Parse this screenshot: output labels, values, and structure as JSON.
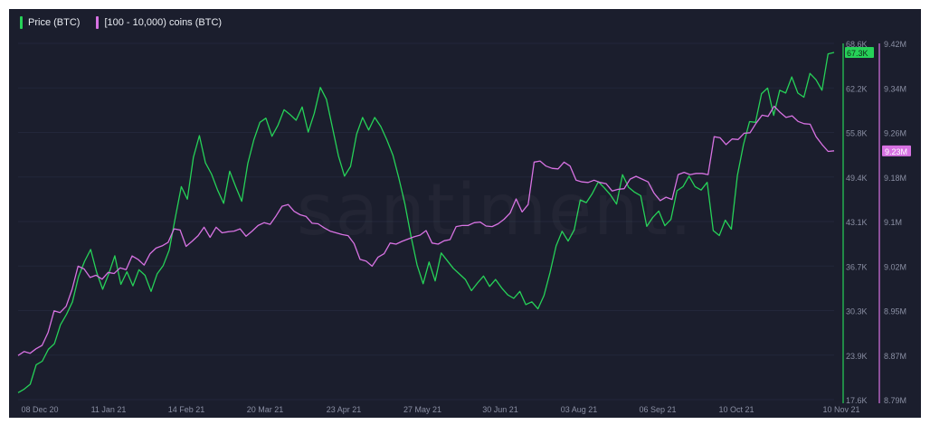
{
  "legend": {
    "price_label": "Price (BTC)",
    "holders_label": "[100 - 10,000) coins (BTC)"
  },
  "watermark": "santiment.",
  "caption": "",
  "colors": {
    "background": "#1b1e2d",
    "price": "#26d158",
    "holders": "#d772e2",
    "price_badge_text": "#0f2a18",
    "axis_text": "#8a8fa3"
  },
  "chart_data": {
    "type": "line",
    "title": "",
    "x_ticks": [
      "08 Dec 20",
      "11 Jan 21",
      "14 Feb 21",
      "20 Mar 21",
      "23 Apr 21",
      "27 May 21",
      "30 Jun 21",
      "03 Aug 21",
      "06 Sep 21",
      "10 Oct 21",
      "10 Nov 21"
    ],
    "y_left_ticks": [
      "68.6K",
      "62.2K",
      "55.8K",
      "49.4K",
      "43.1K",
      "36.7K",
      "30.3K",
      "23.9K",
      "17.6K"
    ],
    "y_left_range": [
      17.6,
      68.6
    ],
    "y_left_unit": "K",
    "y_right_ticks": [
      "9.42M",
      "9.34M",
      "9.26M",
      "9.18M",
      "9.1M",
      "9.02M",
      "8.95M",
      "8.87M",
      "8.79M"
    ],
    "y_right_range": [
      8.79,
      9.42
    ],
    "y_right_unit": "M",
    "current_price_label": "67.3K",
    "current_holders_label": "9.23M",
    "series": [
      {
        "name": "Price (BTC)",
        "axis": "left",
        "values": [
          18.6,
          19.1,
          19.8,
          22.6,
          23.1,
          24.8,
          25.6,
          28.3,
          29.8,
          31.6,
          35.2,
          37.4,
          39.1,
          35.8,
          33.4,
          35.6,
          38.2,
          34.1,
          35.9,
          33.9,
          36.2,
          35.4,
          33.1,
          35.6,
          36.8,
          39.0,
          43.6,
          48.1,
          46.3,
          52.3,
          55.4,
          51.5,
          49.9,
          47.6,
          45.7,
          50.3,
          48.1,
          46.0,
          51.4,
          54.8,
          57.3,
          57.9,
          55.3,
          56.9,
          59.1,
          58.4,
          57.6,
          59.5,
          55.9,
          58.6,
          62.3,
          60.6,
          56.6,
          52.5,
          49.6,
          51.0,
          55.6,
          58.0,
          56.2,
          58.0,
          56.7,
          54.8,
          52.6,
          49.3,
          45.6,
          41.0,
          36.9,
          34.2,
          37.3,
          34.6,
          38.6,
          37.5,
          36.4,
          35.6,
          34.8,
          33.2,
          34.3,
          35.3,
          33.8,
          34.8,
          33.6,
          32.6,
          32.1,
          33.1,
          31.2,
          31.6,
          30.6,
          32.5,
          35.8,
          39.6,
          41.7,
          40.3,
          41.9,
          46.2,
          45.8,
          47.1,
          48.8,
          47.9,
          46.9,
          45.6,
          49.8,
          48.0,
          47.3,
          46.8,
          42.4,
          43.7,
          44.6,
          42.5,
          43.4,
          47.5,
          48.1,
          49.6,
          48.1,
          47.6,
          48.7,
          41.8,
          41.1,
          43.3,
          42.0,
          49.7,
          54.1,
          57.4,
          57.3,
          61.4,
          62.2,
          58.3,
          61.9,
          61.5,
          63.8,
          61.5,
          60.9,
          64.3,
          63.4,
          61.9,
          67.1,
          67.3
        ]
      },
      {
        "name": "[100 - 10,000) coins (BTC)",
        "axis": "right",
        "values": [
          8.868,
          8.875,
          8.872,
          8.88,
          8.886,
          8.909,
          8.947,
          8.944,
          8.955,
          8.985,
          9.026,
          9.021,
          9.006,
          9.01,
          9.003,
          9.015,
          9.013,
          9.023,
          9.02,
          9.044,
          9.038,
          9.028,
          9.048,
          9.058,
          9.062,
          9.068,
          9.092,
          9.09,
          9.061,
          9.07,
          9.08,
          9.095,
          9.077,
          9.095,
          9.085,
          9.087,
          9.088,
          9.092,
          9.079,
          9.088,
          9.098,
          9.103,
          9.1,
          9.115,
          9.132,
          9.135,
          9.123,
          9.117,
          9.114,
          9.102,
          9.101,
          9.094,
          9.088,
          9.085,
          9.082,
          9.08,
          9.066,
          9.038,
          9.035,
          9.026,
          9.042,
          9.048,
          9.067,
          9.065,
          9.07,
          9.074,
          9.078,
          9.081,
          9.089,
          9.067,
          9.065,
          9.071,
          9.073,
          9.096,
          9.098,
          9.098,
          9.103,
          9.104,
          9.097,
          9.096,
          9.101,
          9.109,
          9.12,
          9.145,
          9.122,
          9.135,
          9.21,
          9.212,
          9.203,
          9.199,
          9.198,
          9.21,
          9.203,
          9.178,
          9.175,
          9.174,
          9.178,
          9.174,
          9.172,
          9.159,
          9.162,
          9.163,
          9.18,
          9.185,
          9.18,
          9.175,
          9.155,
          9.142,
          9.148,
          9.144,
          9.188,
          9.192,
          9.188,
          9.19,
          9.19,
          9.188,
          9.255,
          9.253,
          9.241,
          9.251,
          9.25,
          9.261,
          9.262,
          9.279,
          9.293,
          9.291,
          9.309,
          9.298,
          9.289,
          9.292,
          9.282,
          9.278,
          9.277,
          9.255,
          9.241,
          9.229,
          9.23
        ]
      }
    ]
  }
}
